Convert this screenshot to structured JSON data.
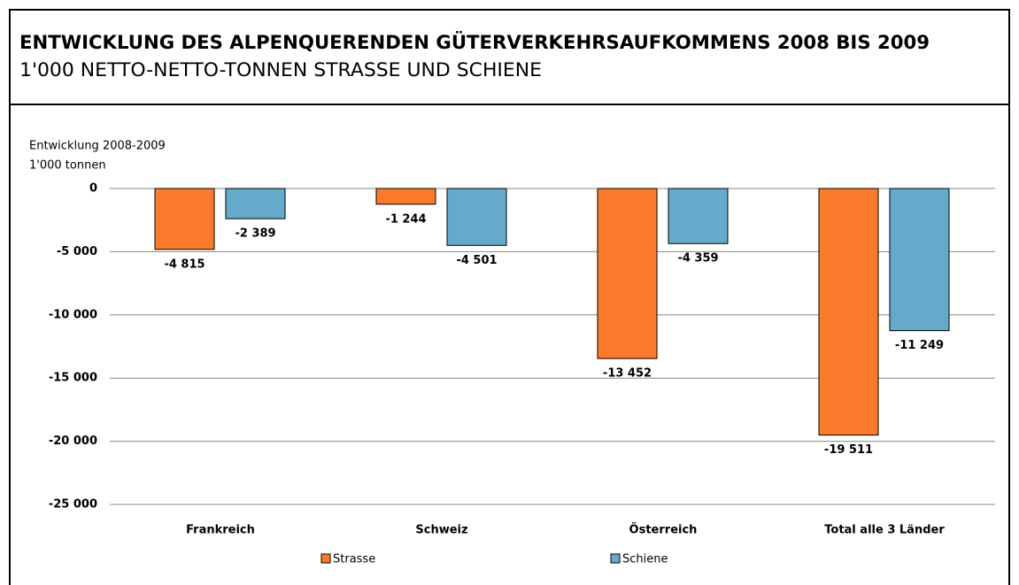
{
  "chart_data": {
    "type": "bar",
    "title": "ENTWICKLUNG DES ALPENQUERENDEN GÜTERVERKEHRSAUFKOMMENS 2008 BIS 2009",
    "subtitle": "1'000 NETTO-NETTO-TONNEN STRASSE UND SCHIENE",
    "y_axis_label": [
      "Entwicklung 2008-2009",
      "1'000 tonnen"
    ],
    "categories": [
      "Frankreich",
      "Schweiz",
      "Österreich",
      "Total alle 3 Länder"
    ],
    "series": [
      {
        "name": "Strasse",
        "color": "#fb7a2b",
        "values": [
          -4815,
          -1244,
          -13452,
          -19511
        ],
        "value_labels": [
          "-4 815",
          "-1 244",
          "-13 452",
          "-19 511"
        ]
      },
      {
        "name": "Schiene",
        "color": "#66aacb",
        "values": [
          -2389,
          -4501,
          -4359,
          -11249
        ],
        "value_labels": [
          "-2 389",
          "-4 501",
          "-4 359",
          "-11 249"
        ]
      }
    ],
    "ylim": [
      -25000,
      0
    ],
    "yticks": [
      0,
      {
        "value": -5000,
        "label": "-5 000"
      },
      {
        "value": -10000,
        "label": "-10 000"
      },
      {
        "value": -15000,
        "label": "-15 000"
      },
      {
        "value": -20000,
        "label": "-20 000"
      },
      {
        "value": -25000,
        "label": "-25 000"
      }
    ],
    "grid": true,
    "legend": "bottom"
  }
}
